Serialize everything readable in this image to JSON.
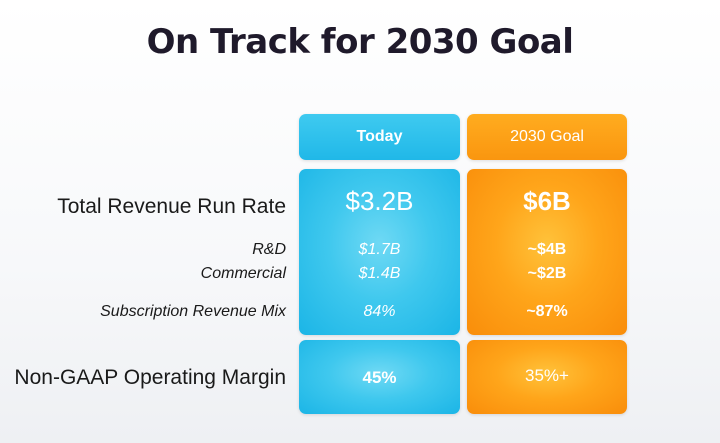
{
  "title": "On Track for 2030 Goal",
  "columns": {
    "today": "Today",
    "goal": "2030 Goal"
  },
  "rows": {
    "total_revenue": {
      "label": "Total Revenue Run Rate",
      "today": "$3.2B",
      "goal": "$6B"
    },
    "rd": {
      "label": "R&D",
      "today": "$1.7B",
      "goal": "~$4B"
    },
    "commercial": {
      "label": "Commercial",
      "today": "$1.4B",
      "goal": "~$2B"
    },
    "subscription": {
      "label": "Subscription Revenue Mix",
      "today": "84%",
      "goal": "~87%"
    },
    "margin": {
      "label": "Non-GAAP Operating Margin",
      "today": "45%",
      "goal": "35%+"
    }
  },
  "colors": {
    "today_accent": "#2ec1ec",
    "goal_accent": "#ffa116",
    "title_text": "#1f1a2b"
  }
}
